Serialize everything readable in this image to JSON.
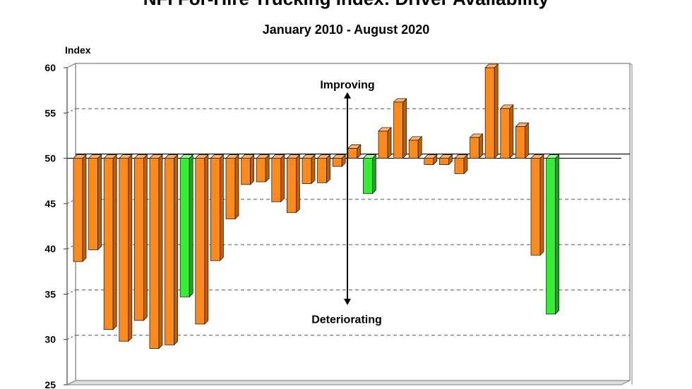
{
  "chart_data": {
    "type": "bar",
    "title": "NFI For-Hire Trucking Index: Driver Availability",
    "subtitle": "January 2010 - August 2020",
    "ylabel": "Index",
    "ylim": [
      25,
      60
    ],
    "yticks": [
      25,
      30,
      35,
      40,
      45,
      50,
      55,
      60
    ],
    "baseline": 50,
    "grid": true,
    "annotations": {
      "up": "Improving",
      "down": "Deteriorating"
    },
    "colors": {
      "orange": "#ff8a1c",
      "green": "#33ee33"
    },
    "values": [
      38.6,
      39.9,
      31.1,
      29.8,
      32.1,
      29.0,
      29.4,
      34.7,
      31.7,
      38.7,
      43.3,
      47.1,
      47.4,
      45.2,
      44.0,
      47.2,
      47.3,
      49.1,
      51.1,
      46.1,
      53.0,
      56.2,
      52.0,
      49.3,
      49.3,
      48.3,
      52.3,
      60.0,
      55.5,
      53.5,
      39.3,
      32.8
    ],
    "bar_colors": [
      "orange",
      "orange",
      "orange",
      "orange",
      "orange",
      "orange",
      "orange",
      "green",
      "orange",
      "orange",
      "orange",
      "orange",
      "orange",
      "orange",
      "orange",
      "orange",
      "orange",
      "orange",
      "orange",
      "green",
      "orange",
      "orange",
      "orange",
      "orange",
      "orange",
      "orange",
      "orange",
      "orange",
      "orange",
      "orange",
      "orange",
      "green"
    ]
  }
}
